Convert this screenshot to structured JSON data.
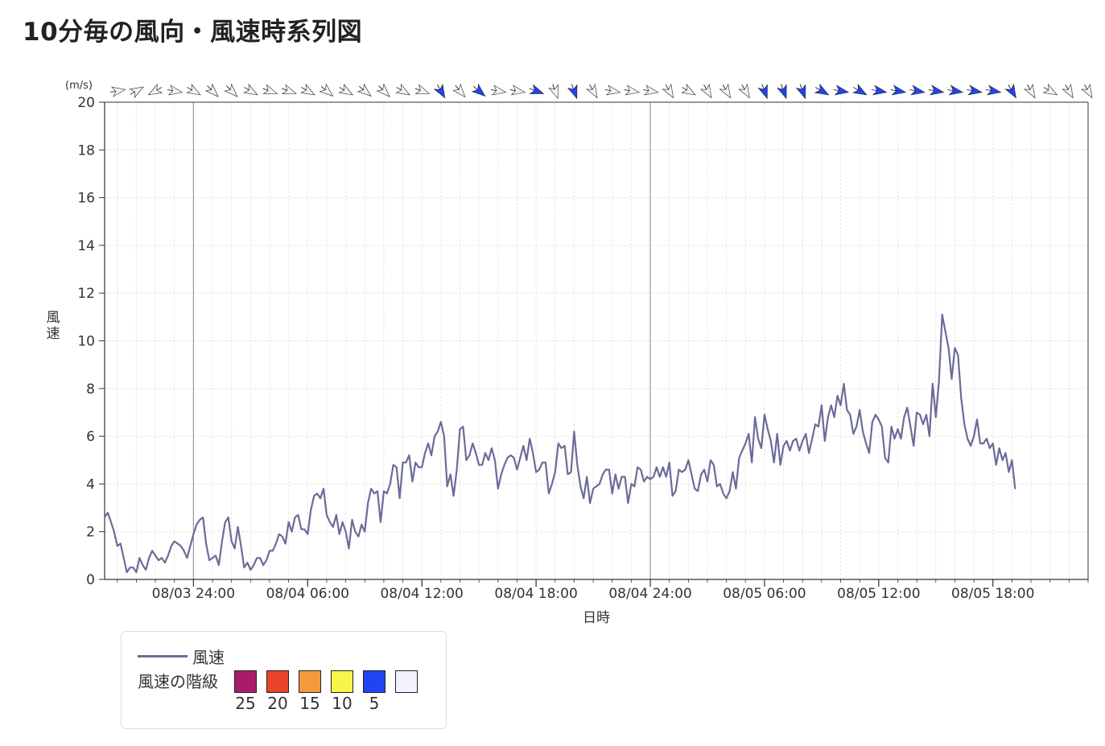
{
  "title": "10分毎の風向・風速時系列図",
  "chart_data": {
    "type": "line",
    "ylabel": "風速",
    "yunit": "(m/s)",
    "xlabel": "日時",
    "ylim": [
      0,
      20
    ],
    "yticks": [
      0,
      2,
      4,
      6,
      8,
      10,
      12,
      14,
      16,
      18,
      20
    ],
    "xlim": [
      "08/03 19:20",
      "08/05 23:00"
    ],
    "xticks": [
      "08/03 24:00",
      "08/04 06:00",
      "08/04 12:00",
      "08/04 18:00",
      "08/04 24:00",
      "08/05 06:00",
      "08/05 12:00",
      "08/05 18:00"
    ],
    "day_boundaries": [
      "08/03 24:00",
      "08/04 24:00"
    ],
    "grid": true,
    "series": [
      {
        "name": "風速",
        "color": "#6b6b9a",
        "x_start": "08/03 19:20",
        "x_step_minutes": 10,
        "values": [
          2.6,
          2.8,
          2.4,
          2.0,
          1.4,
          1.5,
          0.9,
          0.3,
          0.5,
          0.5,
          0.3,
          0.9,
          0.6,
          0.4,
          0.9,
          1.2,
          1.0,
          0.8,
          0.9,
          0.7,
          1.0,
          1.4,
          1.6,
          1.5,
          1.4,
          1.2,
          0.9,
          1.4,
          1.9,
          2.3,
          2.5,
          2.6,
          1.5,
          0.8,
          0.9,
          1.0,
          0.6,
          1.6,
          2.4,
          2.6,
          1.6,
          1.3,
          2.2,
          1.4,
          0.5,
          0.7,
          0.4,
          0.6,
          0.9,
          0.9,
          0.6,
          0.8,
          1.2,
          1.2,
          1.5,
          1.9,
          1.8,
          1.5,
          2.4,
          2.0,
          2.6,
          2.7,
          2.1,
          2.1,
          1.9,
          2.9,
          3.5,
          3.6,
          3.4,
          3.8,
          2.7,
          2.4,
          2.2,
          2.7,
          1.9,
          2.4,
          2.0,
          1.3,
          2.5,
          2.0,
          1.8,
          2.3,
          2.0,
          3.2,
          3.8,
          3.6,
          3.7,
          2.4,
          3.7,
          3.6,
          4.0,
          4.8,
          4.7,
          3.4,
          4.9,
          4.9,
          5.2,
          4.1,
          4.9,
          4.7,
          4.7,
          5.3,
          5.7,
          5.2,
          6.0,
          6.2,
          6.6,
          6.0,
          3.9,
          4.4,
          3.5,
          4.6,
          6.3,
          6.4,
          5.0,
          5.2,
          5.7,
          5.3,
          4.8,
          4.8,
          5.3,
          5.0,
          5.5,
          5.0,
          3.8,
          4.4,
          4.8,
          5.1,
          5.2,
          5.1,
          4.6,
          5.1,
          5.6,
          5.0,
          5.9,
          5.3,
          4.5,
          4.6,
          4.9,
          4.9,
          3.6,
          4.0,
          4.5,
          5.7,
          5.5,
          5.6,
          4.4,
          4.5,
          6.2,
          4.8,
          3.9,
          3.4,
          4.3,
          3.2,
          3.8,
          3.9,
          4.0,
          4.4,
          4.6,
          4.6,
          3.6,
          4.4,
          3.8,
          4.3,
          4.3,
          3.2,
          4.0,
          3.9,
          4.7,
          4.6,
          4.1,
          4.3,
          4.2,
          4.3,
          4.7,
          4.3,
          4.7,
          4.3,
          4.9,
          3.5,
          3.7,
          4.6,
          4.5,
          4.6,
          5.0,
          4.4,
          3.8,
          3.7,
          4.4,
          4.6,
          4.1,
          5.0,
          4.8,
          3.9,
          4.0,
          3.6,
          3.4,
          3.7,
          4.5,
          3.8,
          5.1,
          5.4,
          5.7,
          6.1,
          4.9,
          6.8,
          5.9,
          5.5,
          6.9,
          6.3,
          5.8,
          4.9,
          6.1,
          4.8,
          5.6,
          5.8,
          5.4,
          5.8,
          5.9,
          5.4,
          5.8,
          6.1,
          5.3,
          5.9,
          6.5,
          6.4,
          7.3,
          5.8,
          6.8,
          7.3,
          6.8,
          7.7,
          7.3,
          8.2,
          7.1,
          6.9,
          6.1,
          6.4,
          7.1,
          6.2,
          5.7,
          5.3,
          6.6,
          6.9,
          6.7,
          6.4,
          5.1,
          4.9,
          6.4,
          5.9,
          6.3,
          5.9,
          6.8,
          7.2,
          6.4,
          5.6,
          7.0,
          6.9,
          6.5,
          6.9,
          6.0,
          8.2,
          6.8,
          8.3,
          11.1,
          10.4,
          9.7,
          8.4,
          9.7,
          9.4,
          7.6,
          6.5,
          5.9,
          5.6,
          6.0,
          6.7,
          5.7,
          5.7,
          5.9,
          5.5,
          5.7,
          4.8,
          5.5,
          5.0,
          5.3,
          4.5,
          5.0,
          3.8
        ]
      }
    ],
    "wind_direction": {
      "x_start": "08/03 19:00",
      "x_step_hours": 1,
      "directions_deg": [
        90,
        80,
        60,
        240,
        100,
        120,
        135,
        135,
        120,
        110,
        110,
        120,
        130,
        120,
        130,
        135,
        120,
        110,
        150,
        140,
        130,
        100,
        100,
        110,
        160,
        160,
        150,
        100,
        100,
        100,
        150,
        120,
        150,
        150,
        150,
        160,
        160,
        160,
        120,
        100,
        120,
        100,
        100,
        100,
        100,
        100,
        100,
        100,
        150,
        150,
        120,
        150,
        150,
        150,
        160,
        160,
        160,
        160,
        160,
        160,
        160,
        160,
        160,
        160,
        160,
        160,
        150,
        150,
        140,
        140,
        140,
        140,
        160,
        160,
        160
      ],
      "class_thresholds_ms": [
        25,
        20,
        15,
        10,
        5
      ]
    }
  },
  "legend": {
    "series_label": "風速",
    "class_title": "風速の階級",
    "classes": [
      {
        "label": "25",
        "color": "#a81c6a"
      },
      {
        "label": "20",
        "color": "#e8442a"
      },
      {
        "label": "15",
        "color": "#f59a3b"
      },
      {
        "label": "10",
        "color": "#f8f44c"
      },
      {
        "label": "5",
        "color": "#1f44f2"
      },
      {
        "label": "",
        "color": "#f2f2ff"
      }
    ]
  }
}
